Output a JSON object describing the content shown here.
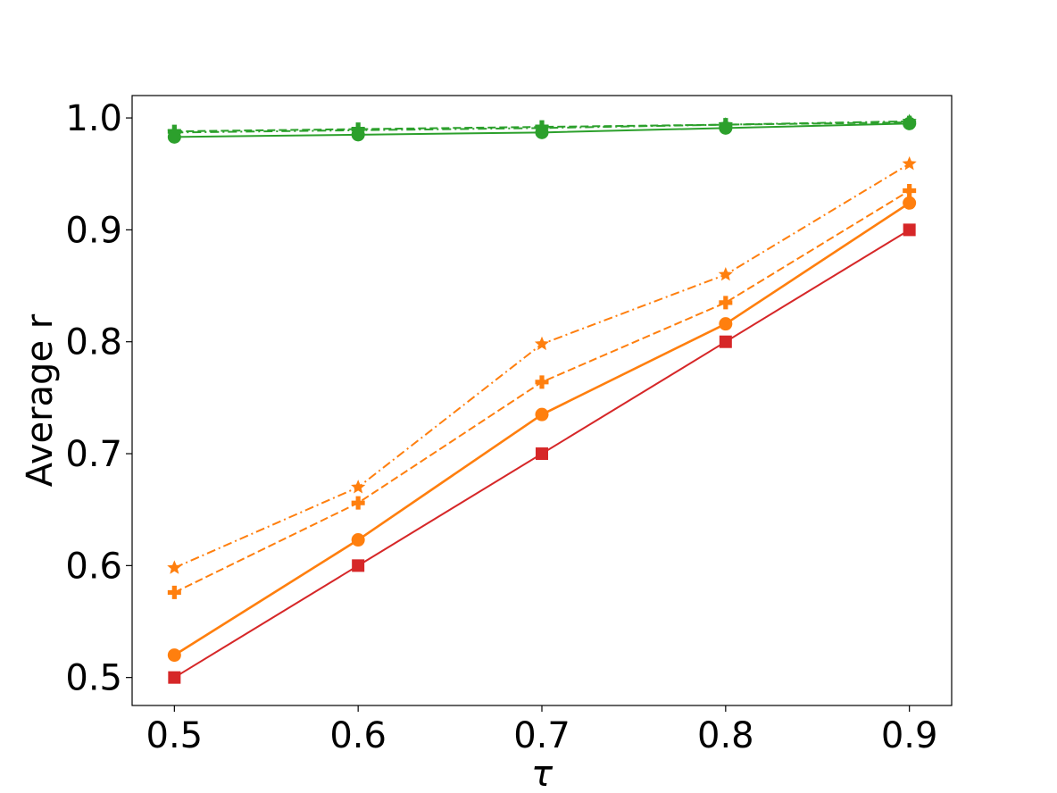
{
  "chart_data": {
    "type": "line",
    "xlabel": "τ",
    "ylabel": "Average r",
    "x": [
      0.5,
      0.6,
      0.7,
      0.8,
      0.9
    ],
    "x_ticks": [
      "0.5",
      "0.6",
      "0.7",
      "0.8",
      "0.9"
    ],
    "y_ticks": [
      "0.5",
      "0.6",
      "0.7",
      "0.8",
      "0.9",
      "1.0"
    ],
    "xlim": [
      0.477,
      0.923
    ],
    "ylim": [
      0.475,
      1.02
    ],
    "grid": false,
    "legend": "none",
    "series": [
      {
        "values": [
          0.987,
          0.989,
          0.991,
          0.994,
          0.997
        ],
        "color": "#2ca02c",
        "dash": "dashdot",
        "marker": "star"
      },
      {
        "values": [
          0.988,
          0.99,
          0.992,
          0.994,
          0.996
        ],
        "color": "#2ca02c",
        "dash": "dashed",
        "marker": "plus"
      },
      {
        "values": [
          0.983,
          0.985,
          0.987,
          0.991,
          0.995
        ],
        "color": "#2ca02c",
        "dash": "solid",
        "marker": "circle"
      },
      {
        "values": [
          0.598,
          0.67,
          0.798,
          0.86,
          0.959
        ],
        "color": "#ff7f0e",
        "dash": "dashdot",
        "marker": "star"
      },
      {
        "values": [
          0.576,
          0.656,
          0.764,
          0.835,
          0.935
        ],
        "color": "#ff7f0e",
        "dash": "dashed",
        "marker": "plus"
      },
      {
        "values": [
          0.52,
          0.623,
          0.735,
          0.816,
          0.924
        ],
        "color": "#ff7f0e",
        "dash": "solid",
        "marker": "circle"
      },
      {
        "values": [
          0.5,
          0.6,
          0.7,
          0.8,
          0.9
        ],
        "color": "#d62728",
        "dash": "solid",
        "marker": "square"
      }
    ]
  }
}
